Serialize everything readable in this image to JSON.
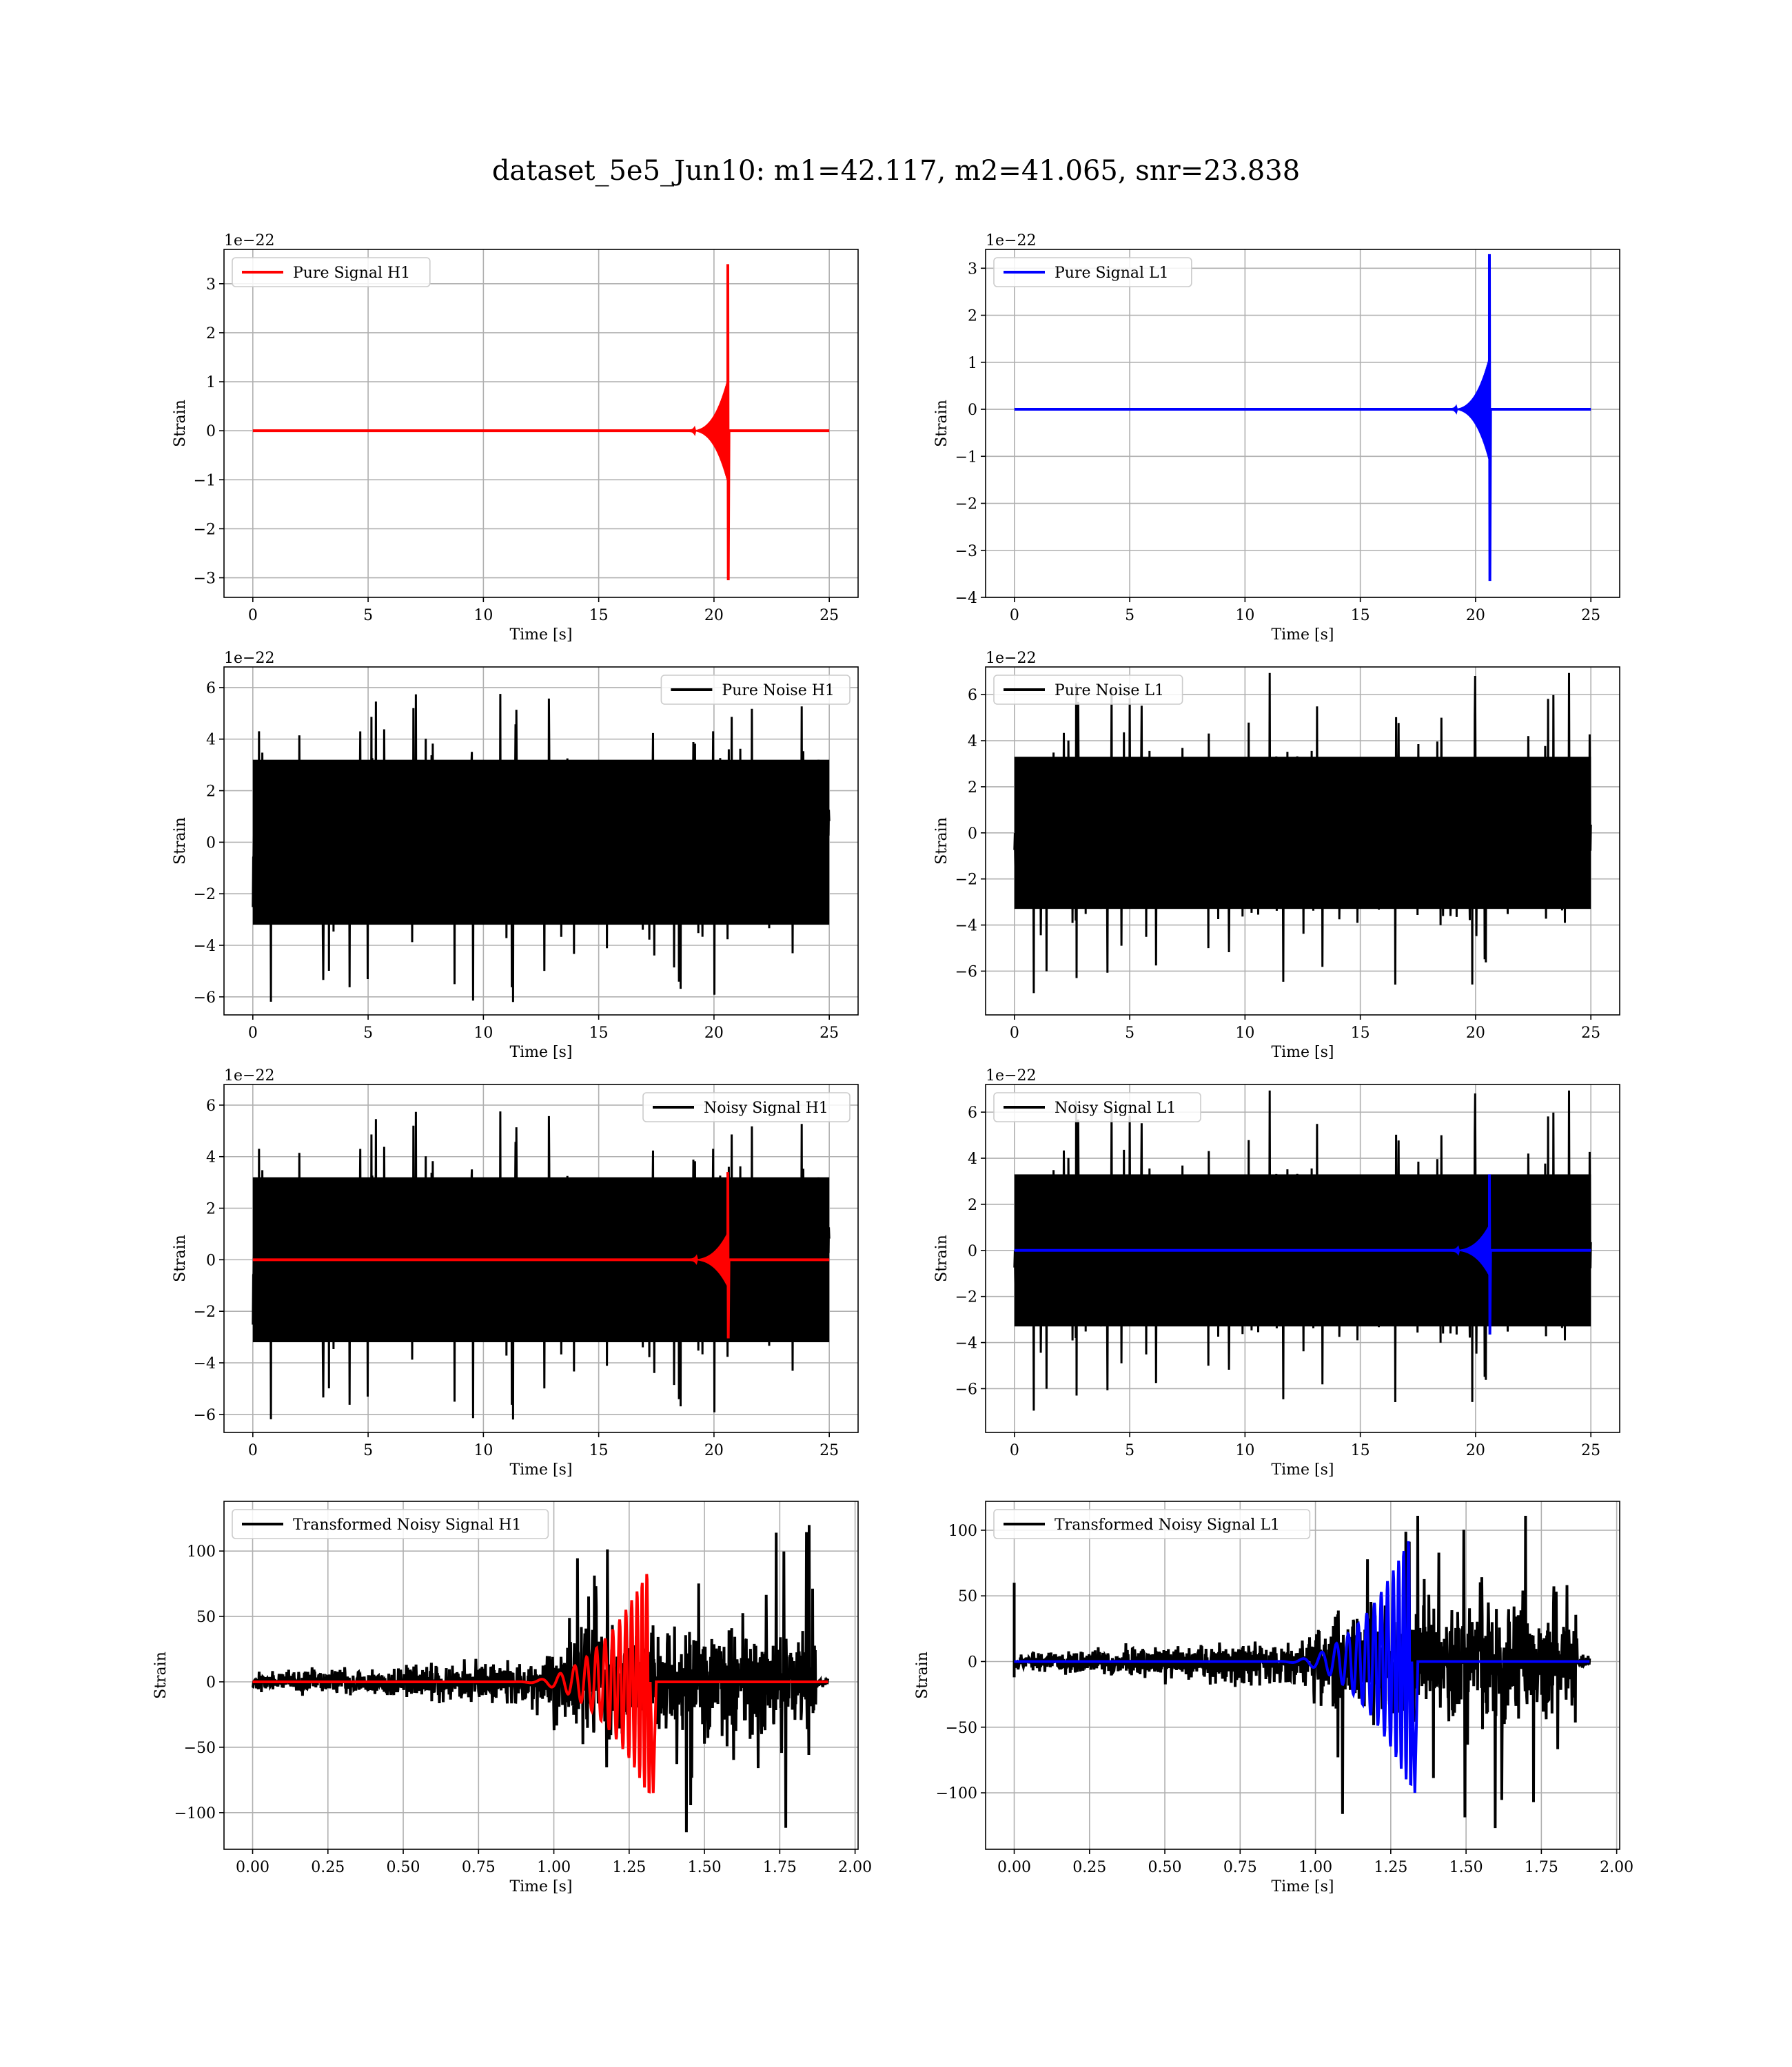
{
  "figure": {
    "title": "dataset_5e5_Jun10: m1=42.117, m2=41.065, snr=23.838"
  },
  "colors": {
    "h1_signal": "#ff0000",
    "l1_signal": "#0000ff",
    "noise": "#000000",
    "grid": "#b0b0b0"
  },
  "chart_data": [
    {
      "id": "pure-signal-h1",
      "type": "line",
      "row": 0,
      "col": 0,
      "xlabel": "Time [s]",
      "ylabel": "Strain",
      "offset_label": "1e−22",
      "xlim": [
        -1.25,
        26.25
      ],
      "ylim": [
        -3.4,
        3.7
      ],
      "xticks": [
        0,
        5,
        10,
        15,
        20,
        25
      ],
      "xtick_labels": [
        "0",
        "5",
        "10",
        "15",
        "20",
        "25"
      ],
      "yticks": [
        -3,
        -2,
        -1,
        0,
        1,
        2,
        3
      ],
      "ytick_labels": [
        "−3",
        "−2",
        "−1",
        "0",
        "1",
        "2",
        "3"
      ],
      "grid": true,
      "legend": "top-left",
      "series": [
        {
          "name": "Pure Signal H1",
          "color": "#ff0000",
          "kind": "chirp",
          "x_range": [
            0,
            25
          ],
          "merger_time": 20.6,
          "peak_pos": 3.4,
          "peak_neg": -3.05,
          "inspiral_amp": 1.0
        }
      ]
    },
    {
      "id": "pure-signal-l1",
      "type": "line",
      "row": 0,
      "col": 1,
      "xlabel": "Time [s]",
      "ylabel": "Strain",
      "offset_label": "1e−22",
      "xlim": [
        -1.25,
        26.25
      ],
      "ylim": [
        -4.0,
        3.4
      ],
      "xticks": [
        0,
        5,
        10,
        15,
        20,
        25
      ],
      "xtick_labels": [
        "0",
        "5",
        "10",
        "15",
        "20",
        "25"
      ],
      "yticks": [
        -4,
        -3,
        -2,
        -1,
        0,
        1,
        2,
        3
      ],
      "ytick_labels": [
        "−4",
        "−3",
        "−2",
        "−1",
        "0",
        "1",
        "2",
        "3"
      ],
      "grid": true,
      "legend": "top-left",
      "series": [
        {
          "name": "Pure Signal L1",
          "color": "#0000ff",
          "kind": "chirp",
          "x_range": [
            0,
            25
          ],
          "merger_time": 20.6,
          "peak_pos": 3.3,
          "peak_neg": -3.65,
          "inspiral_amp": 1.05
        }
      ]
    },
    {
      "id": "pure-noise-h1",
      "type": "line",
      "row": 1,
      "col": 0,
      "xlabel": "Time [s]",
      "ylabel": "Strain",
      "offset_label": "1e−22",
      "xlim": [
        -1.25,
        26.25
      ],
      "ylim": [
        -6.7,
        6.8
      ],
      "xticks": [
        0,
        5,
        10,
        15,
        20,
        25
      ],
      "xtick_labels": [
        "0",
        "5",
        "10",
        "15",
        "20",
        "25"
      ],
      "yticks": [
        -6,
        -4,
        -2,
        0,
        2,
        4,
        6
      ],
      "ytick_labels": [
        "−6",
        "−4",
        "−2",
        "0",
        "2",
        "4",
        "6"
      ],
      "grid": true,
      "legend": "top-right",
      "series": [
        {
          "name": "Pure Noise H1",
          "color": "#000000",
          "kind": "noise",
          "x_range": [
            0,
            25
          ],
          "core": 3.2,
          "max": 6.2,
          "min": -6.1,
          "seed": 11
        }
      ]
    },
    {
      "id": "pure-noise-l1",
      "type": "line",
      "row": 1,
      "col": 1,
      "xlabel": "Time [s]",
      "ylabel": "Strain",
      "offset_label": "1e−22",
      "xlim": [
        -1.25,
        26.25
      ],
      "ylim": [
        -7.9,
        7.2
      ],
      "xticks": [
        0,
        5,
        10,
        15,
        20,
        25
      ],
      "xtick_labels": [
        "0",
        "5",
        "10",
        "15",
        "20",
        "25"
      ],
      "yticks": [
        -6,
        -4,
        -2,
        0,
        2,
        4,
        6
      ],
      "ytick_labels": [
        "−6",
        "−4",
        "−2",
        "0",
        "2",
        "4",
        "6"
      ],
      "grid": true,
      "legend": "top-left",
      "series": [
        {
          "name": "Pure Noise L1",
          "color": "#000000",
          "kind": "noise",
          "x_range": [
            0,
            25
          ],
          "core": 3.3,
          "max": 7.0,
          "min": -7.2,
          "seed": 23
        }
      ]
    },
    {
      "id": "noisy-signal-h1",
      "type": "line",
      "row": 2,
      "col": 0,
      "xlabel": "Time [s]",
      "ylabel": "Strain",
      "offset_label": "1e−22",
      "xlim": [
        -1.25,
        26.25
      ],
      "ylim": [
        -6.7,
        6.8
      ],
      "xticks": [
        0,
        5,
        10,
        15,
        20,
        25
      ],
      "xtick_labels": [
        "0",
        "5",
        "10",
        "15",
        "20",
        "25"
      ],
      "yticks": [
        -6,
        -4,
        -2,
        0,
        2,
        4,
        6
      ],
      "ytick_labels": [
        "−6",
        "−4",
        "−2",
        "0",
        "2",
        "4",
        "6"
      ],
      "grid": true,
      "legend": "top-right",
      "series": [
        {
          "name": "Noisy Signal H1",
          "color": "#000000",
          "kind": "noise",
          "x_range": [
            0,
            25
          ],
          "core": 3.2,
          "max": 6.2,
          "min": -6.1,
          "seed": 11
        },
        {
          "color": "#ff0000",
          "kind": "chirp",
          "x_range": [
            0,
            25
          ],
          "merger_time": 20.6,
          "peak_pos": 3.4,
          "peak_neg": -3.05,
          "inspiral_amp": 1.0
        }
      ]
    },
    {
      "id": "noisy-signal-l1",
      "type": "line",
      "row": 2,
      "col": 1,
      "xlabel": "Time [s]",
      "ylabel": "Strain",
      "offset_label": "1e−22",
      "xlim": [
        -1.25,
        26.25
      ],
      "ylim": [
        -7.9,
        7.2
      ],
      "xticks": [
        0,
        5,
        10,
        15,
        20,
        25
      ],
      "xtick_labels": [
        "0",
        "5",
        "10",
        "15",
        "20",
        "25"
      ],
      "yticks": [
        -6,
        -4,
        -2,
        0,
        2,
        4,
        6
      ],
      "ytick_labels": [
        "−6",
        "−4",
        "−2",
        "0",
        "2",
        "4",
        "6"
      ],
      "grid": true,
      "legend": "top-left",
      "series": [
        {
          "name": "Noisy Signal L1",
          "color": "#000000",
          "kind": "noise",
          "x_range": [
            0,
            25
          ],
          "core": 3.3,
          "max": 7.0,
          "min": -7.2,
          "seed": 23
        },
        {
          "color": "#0000ff",
          "kind": "chirp",
          "x_range": [
            0,
            25
          ],
          "merger_time": 20.6,
          "peak_pos": 3.3,
          "peak_neg": -3.65,
          "inspiral_amp": 1.05
        }
      ]
    },
    {
      "id": "transformed-h1",
      "type": "line",
      "row": 3,
      "col": 0,
      "xlabel": "Time [s]",
      "ylabel": "Strain",
      "offset_label": "",
      "xlim": [
        -0.095,
        2.01
      ],
      "ylim": [
        -128,
        138
      ],
      "xticks": [
        0,
        0.25,
        0.5,
        0.75,
        1.0,
        1.25,
        1.5,
        1.75,
        2.0
      ],
      "xtick_labels": [
        "0.00",
        "0.25",
        "0.50",
        "0.75",
        "1.00",
        "1.25",
        "1.50",
        "1.75",
        "2.00"
      ],
      "yticks": [
        -100,
        -50,
        0,
        50,
        100
      ],
      "ytick_labels": [
        "−100",
        "−50",
        "0",
        "50",
        "100"
      ],
      "grid": true,
      "legend": "top-left",
      "series": [
        {
          "name": "Transformed Noisy Signal H1",
          "color": "#000000",
          "kind": "whitened",
          "x_range": [
            0,
            1.91
          ],
          "band_end": 1.87,
          "seed": 37,
          "burst_max": 128,
          "burst_min": -115
        },
        {
          "color": "#ff0000",
          "kind": "whitened-chirp",
          "x_range": [
            0,
            1.91
          ],
          "merger_time": 1.32,
          "peak": 90,
          "trough": -85
        }
      ]
    },
    {
      "id": "transformed-l1",
      "type": "line",
      "row": 3,
      "col": 1,
      "xlabel": "Time [s]",
      "ylabel": "Strain",
      "offset_label": "",
      "xlim": [
        -0.095,
        2.01
      ],
      "ylim": [
        -143,
        122
      ],
      "xticks": [
        0,
        0.25,
        0.5,
        0.75,
        1.0,
        1.25,
        1.5,
        1.75,
        2.0
      ],
      "xtick_labels": [
        "0.00",
        "0.25",
        "0.50",
        "0.75",
        "1.00",
        "1.25",
        "1.50",
        "1.75",
        "2.00"
      ],
      "yticks": [
        -100,
        -50,
        0,
        50,
        100
      ],
      "ytick_labels": [
        "−100",
        "−50",
        "0",
        "50",
        "100"
      ],
      "grid": true,
      "legend": "top-left",
      "series": [
        {
          "name": "Transformed Noisy Signal L1",
          "color": "#000000",
          "kind": "whitened",
          "x_range": [
            0,
            1.91
          ],
          "band_end": 1.87,
          "seed": 53,
          "burst_max": 111,
          "burst_min": -130,
          "initial_spike": 60
        },
        {
          "color": "#0000ff",
          "kind": "whitened-chirp",
          "x_range": [
            0,
            1.91
          ],
          "merger_time": 1.32,
          "peak": 95,
          "trough": -100
        }
      ]
    }
  ]
}
